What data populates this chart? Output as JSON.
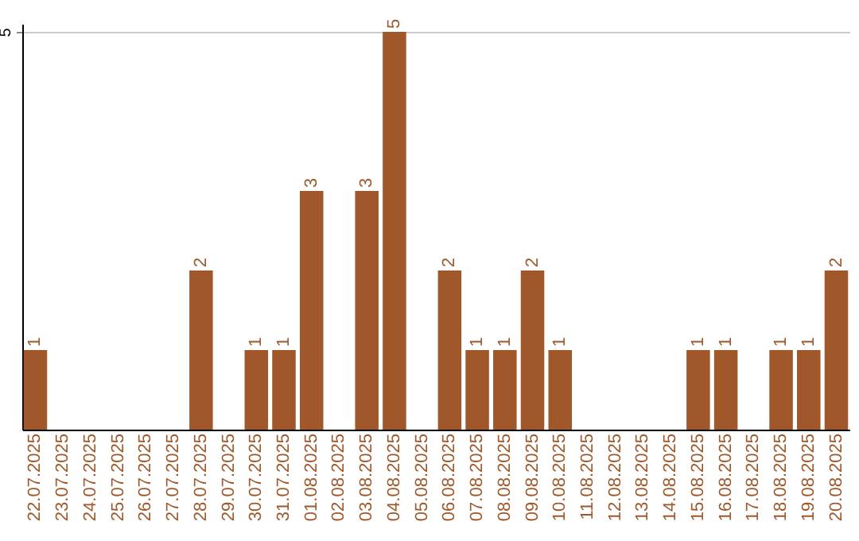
{
  "chart_data": {
    "type": "bar",
    "categories": [
      "22.07.2025",
      "23.07.2025",
      "24.07.2025",
      "25.07.2025",
      "26.07.2025",
      "27.07.2025",
      "28.07.2025",
      "29.07.2025",
      "30.07.2025",
      "31.07.2025",
      "01.08.2025",
      "02.08.2025",
      "03.08.2025",
      "04.08.2025",
      "05.08.2025",
      "06.08.2025",
      "07.08.2025",
      "08.08.2025",
      "09.08.2025",
      "10.08.2025",
      "11.08.2025",
      "12.08.2025",
      "13.08.2025",
      "14.08.2025",
      "15.08.2025",
      "16.08.2025",
      "17.08.2025",
      "18.08.2025",
      "19.08.2025",
      "20.08.2025"
    ],
    "values": [
      1,
      0,
      0,
      0,
      0,
      0,
      2,
      0,
      1,
      1,
      3,
      0,
      3,
      5,
      0,
      2,
      1,
      1,
      2,
      1,
      0,
      0,
      0,
      0,
      1,
      1,
      0,
      1,
      1,
      2
    ],
    "value_labels": [
      "1",
      null,
      null,
      null,
      null,
      null,
      "2",
      null,
      "1",
      "1",
      "3",
      null,
      "3",
      "5",
      null,
      "2",
      "1",
      "1",
      "2",
      "1",
      null,
      null,
      null,
      null,
      "1",
      "1",
      null,
      "1",
      "1",
      "2"
    ],
    "color": "#a0582a",
    "ylim": [
      0,
      5.1
    ],
    "yticks": [
      5
    ],
    "grid": "y"
  }
}
